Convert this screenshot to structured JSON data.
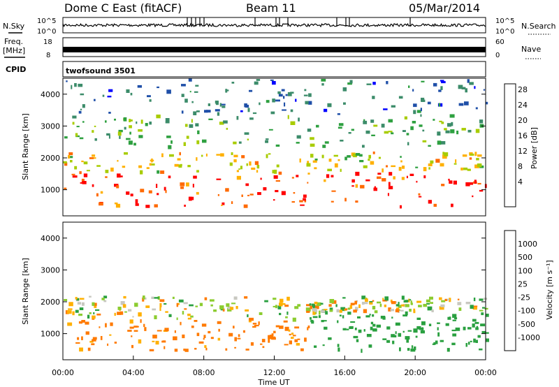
{
  "header": {
    "station": "Dome C East (fitACF)",
    "beam": "Beam 11",
    "date": "05/Mar/2014"
  },
  "noise_panel": {
    "left_label": "N.Sky",
    "left_ticks": [
      "10^5",
      "10^0"
    ],
    "right_ticks": [
      "10^5",
      "10^0"
    ],
    "right_label": "N.Search"
  },
  "freq_panel": {
    "left_label_line1": "Freq.",
    "left_label_line2": "[MHz]",
    "left_ticks": [
      "18",
      "8"
    ],
    "right_ticks": [
      "60",
      "0"
    ],
    "right_label": "Nave"
  },
  "cpid_panel": {
    "label": "CPID",
    "program": "twofsound 3501"
  },
  "x_axis": {
    "label": "Time UT",
    "ticks": [
      "00:00",
      "04:00",
      "08:00",
      "12:00",
      "16:00",
      "20:00",
      "00:00"
    ]
  },
  "y_axis": {
    "label": "Slant Range [km]",
    "ticks": [
      "1000",
      "2000",
      "3000",
      "4000"
    ]
  },
  "power_colorbar": {
    "label": "Power [dB]",
    "ticks": [
      "28",
      "24",
      "20",
      "16",
      "12",
      "8",
      "4"
    ],
    "colors": [
      "#ff0000",
      "#ff6a00",
      "#ffb000",
      "#a8cc00",
      "#2ea040",
      "#3c8c6a",
      "#1f4fa8",
      "#0000ff"
    ]
  },
  "velocity_colorbar": {
    "label": "Velocity [m s⁻¹]",
    "ticks": [
      "1000",
      "500",
      "100",
      "25",
      "-25",
      "-100",
      "-500",
      "-1000"
    ],
    "colors": [
      "#1f3fb0",
      "#3d8c70",
      "#2aa040",
      "#8ccc30",
      "#c8c8c0",
      "#ffb000",
      "#ff7a00",
      "#ff3a00",
      "#ff0000"
    ]
  },
  "chart_data": [
    {
      "type": "heatmap",
      "title": "Power",
      "xlabel": "Time UT",
      "ylabel": "Slant Range [km]",
      "xlim_hours": [
        0,
        24
      ],
      "ylim_km": [
        180,
        4500
      ],
      "colorbar": "Power [dB]",
      "bands": [
        {
          "range_km": [
            500,
            1600
          ],
          "level_db": 26
        },
        {
          "range_km": [
            1600,
            2200
          ],
          "level_db": 18
        },
        {
          "range_km": [
            2400,
            3400
          ],
          "level_db": 12
        },
        {
          "range_km": [
            3400,
            4500
          ],
          "level_db": 6
        }
      ]
    },
    {
      "type": "heatmap",
      "title": "Velocity",
      "xlabel": "Time UT",
      "ylabel": "Slant Range [km]",
      "xlim_hours": [
        0,
        24
      ],
      "ylim_km": [
        180,
        4500
      ],
      "colorbar": "Velocity [m s⁻¹]",
      "bands": [
        {
          "hours": [
            0,
            14
          ],
          "range_km": [
            500,
            1500
          ],
          "velocity": -200
        },
        {
          "hours": [
            0,
            14
          ],
          "range_km": [
            1500,
            2200
          ],
          "velocity": 0
        },
        {
          "hours": [
            14,
            24
          ],
          "range_km": [
            500,
            1700
          ],
          "velocity": 300
        },
        {
          "hours": [
            14,
            24
          ],
          "range_km": [
            1700,
            2200
          ],
          "velocity": 0
        }
      ]
    }
  ]
}
